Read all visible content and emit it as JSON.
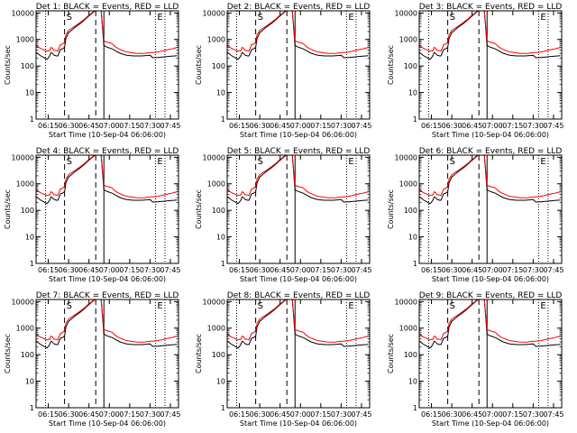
{
  "chart_data": [
    {
      "type": "line",
      "title": "Det 1: BLACK = Events, RED = LLD",
      "flags": [
        "S",
        "E"
      ]
    },
    {
      "type": "line",
      "title": "Det 2: BLACK = Events, RED = LLD",
      "flags": [
        "S",
        "E"
      ]
    },
    {
      "type": "line",
      "title": "Det 3: BLACK = Events, RED = LLD",
      "flags": [
        "S",
        "E"
      ]
    },
    {
      "type": "line",
      "title": "Det 4: BLACK = Events, RED = LLD",
      "flags": [
        "S",
        "E"
      ]
    },
    {
      "type": "line",
      "title": "Det 5: BLACK = Events, RED = LLD",
      "flags": [
        "S",
        "E"
      ]
    },
    {
      "type": "line",
      "title": "Det 6: BLACK = Events, RED = LLD",
      "flags": [
        "S",
        "E"
      ]
    },
    {
      "type": "line",
      "title": "Det 7: BLACK = Events, RED = LLD",
      "flags": [
        "S",
        "E"
      ]
    },
    {
      "type": "line",
      "title": "Det 8: BLACK = Events, RED = LLD",
      "flags": [
        "S",
        "E"
      ]
    },
    {
      "type": "line",
      "title": "Det 9: BLACK = Events, RED = LLD",
      "flags": [
        "S",
        "E"
      ]
    }
  ],
  "shared": {
    "xlabel": "Start Time (10-Sep-04 06:06:00)",
    "ylabel": "Counts/sec",
    "x_tick_labels": [
      "06:15",
      "06:30",
      "06:45",
      "07:00",
      "07:15",
      "07:30",
      "07:45"
    ],
    "x_tick_values": [
      9,
      24,
      39,
      54,
      69,
      84,
      99
    ],
    "xlim": [
      0,
      105
    ],
    "y_tick_labels": [
      "1",
      "10",
      "100",
      "1000",
      "10000"
    ],
    "y_tick_values": [
      1,
      10,
      100,
      1000,
      10000
    ],
    "ylim": [
      1,
      12000
    ],
    "y_scale": "log",
    "vlines": [
      {
        "x": 7,
        "style": "dotted"
      },
      {
        "x": 21,
        "style": "dashed"
      },
      {
        "x": 44,
        "style": "dashed"
      },
      {
        "x": 50,
        "style": "solid"
      },
      {
        "x": 88,
        "style": "dotted"
      },
      {
        "x": 95,
        "style": "dotted"
      }
    ],
    "flag_x": [
      21,
      88
    ],
    "series": [
      {
        "name": "LLD",
        "color": "#ff0000",
        "x": [
          0,
          3,
          8,
          9,
          10,
          11,
          12,
          13,
          14,
          15,
          16,
          18,
          19,
          21,
          22,
          24,
          26,
          28,
          30,
          32,
          34,
          36,
          38,
          40,
          42,
          44,
          46,
          48,
          50,
          52,
          54,
          56,
          58,
          60,
          62,
          64,
          66,
          68,
          70,
          72,
          74,
          76,
          78,
          80,
          82,
          84,
          86,
          88,
          90,
          92,
          94,
          96,
          98,
          100,
          102,
          104
        ],
        "y": [
          600,
          470,
          360,
          380,
          370,
          500,
          470,
          390,
          380,
          380,
          360,
          650,
          650,
          800,
          1500,
          2200,
          2600,
          3000,
          3500,
          4200,
          5000,
          6000,
          7500,
          9000,
          11000,
          12000,
          12000,
          12000,
          900,
          800,
          750,
          700,
          560,
          470,
          420,
          380,
          350,
          330,
          320,
          310,
          300,
          295,
          295,
          300,
          310,
          320,
          320,
          330,
          340,
          360,
          380,
          400,
          420,
          440,
          470,
          500
        ]
      },
      {
        "name": "Events",
        "color": "#000000",
        "x": [
          0,
          3,
          8,
          9,
          10,
          11,
          12,
          13,
          14,
          15,
          16,
          18,
          19,
          21,
          22,
          24,
          26,
          28,
          30,
          32,
          34,
          36,
          38,
          40,
          42,
          44,
          46,
          48,
          50,
          52,
          54,
          56,
          58,
          60,
          62,
          64,
          66,
          68,
          70,
          72,
          74,
          76,
          78,
          80,
          82,
          84,
          86,
          88,
          90,
          92,
          94,
          96,
          98,
          100,
          102,
          104
        ],
        "y": [
          330,
          250,
          180,
          200,
          240,
          320,
          300,
          260,
          250,
          240,
          240,
          420,
          430,
          500,
          1100,
          1800,
          2200,
          2700,
          3200,
          3800,
          4600,
          5600,
          7000,
          8500,
          10500,
          12000,
          12000,
          12000,
          600,
          520,
          480,
          440,
          390,
          340,
          300,
          280,
          260,
          250,
          245,
          240,
          240,
          240,
          240,
          245,
          250,
          255,
          205,
          210,
          210,
          215,
          220,
          225,
          230,
          235,
          240,
          245
        ]
      }
    ]
  }
}
